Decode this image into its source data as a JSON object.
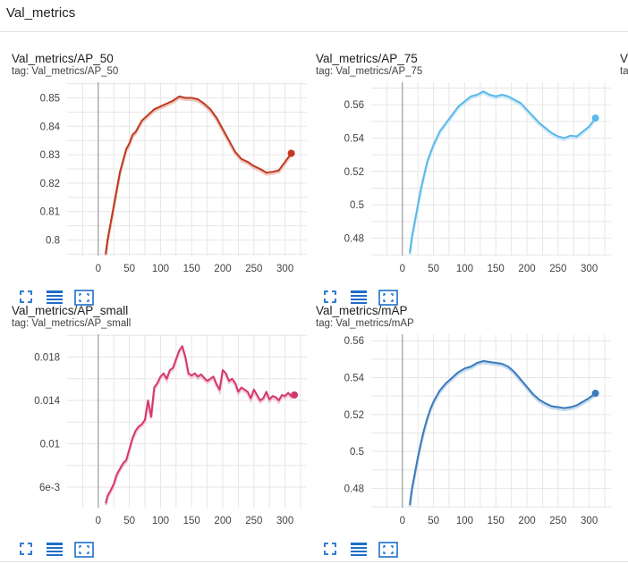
{
  "section": {
    "title": "Val_metrics"
  },
  "icons": {
    "fullscreen": "fullscreen-icon",
    "data_table": "table-icon",
    "fit_domain": "fit-domain-icon"
  },
  "cards": [
    {
      "title": "Val_metrics/AP_50",
      "tag": "tag: Val_metrics/AP_50",
      "color": "#c0391f",
      "chart_data": {
        "type": "line",
        "xlim": [
          -50,
          335
        ],
        "ylim": [
          0.7945,
          0.8555
        ],
        "xticks": [
          0,
          50,
          100,
          150,
          200,
          250,
          300
        ],
        "yticks": [
          0.8,
          0.81,
          0.82,
          0.83,
          0.84,
          0.85
        ],
        "ytick_labels": [
          "0.8",
          "0.81",
          "0.82",
          "0.83",
          "0.84",
          "0.85"
        ],
        "series": [
          {
            "x": [
              12,
              15,
              20,
              25,
              30,
              35,
              40,
              45,
              50,
              55,
              60,
              65,
              70,
              80,
              90,
              100,
              110,
              120,
              130,
              140,
              150,
              160,
              170,
              180,
              190,
              200,
              210,
              220,
              230,
              240,
              250,
              260,
              270,
              280,
              290,
              300,
              310
            ],
            "y": [
              0.795,
              0.8,
              0.806,
              0.812,
              0.818,
              0.824,
              0.828,
              0.832,
              0.834,
              0.837,
              0.838,
              0.84,
              0.842,
              0.844,
              0.846,
              0.847,
              0.848,
              0.849,
              0.8505,
              0.85,
              0.85,
              0.8495,
              0.848,
              0.846,
              0.843,
              0.839,
              0.835,
              0.831,
              0.8285,
              0.8275,
              0.826,
              0.825,
              0.8237,
              0.824,
              0.8245,
              0.8275,
              0.8305
            ]
          }
        ]
      }
    },
    {
      "title": "Val_metrics/AP_75",
      "tag": "tag: Val_metrics/AP_75",
      "color": "#5ab8e8",
      "chart_data": {
        "type": "line",
        "xlim": [
          -50,
          335
        ],
        "ylim": [
          0.4695,
          0.5735
        ],
        "xticks": [
          0,
          50,
          100,
          150,
          200,
          250,
          300
        ],
        "yticks": [
          0.48,
          0.5,
          0.52,
          0.54,
          0.56
        ],
        "ytick_labels": [
          "0.48",
          "0.5",
          "0.52",
          "0.54",
          "0.56"
        ],
        "series": [
          {
            "x": [
              12,
              15,
              20,
              25,
              30,
              35,
              40,
              45,
              50,
              55,
              60,
              70,
              80,
              90,
              100,
              110,
              120,
              130,
              140,
              150,
              160,
              170,
              180,
              190,
              200,
              210,
              220,
              230,
              240,
              250,
              260,
              270,
              280,
              290,
              300,
              310
            ],
            "y": [
              0.471,
              0.48,
              0.49,
              0.5,
              0.51,
              0.518,
              0.526,
              0.531,
              0.536,
              0.54,
              0.544,
              0.549,
              0.554,
              0.559,
              0.562,
              0.565,
              0.566,
              0.568,
              0.566,
              0.565,
              0.566,
              0.565,
              0.563,
              0.561,
              0.557,
              0.553,
              0.549,
              0.546,
              0.543,
              0.541,
              0.54,
              0.5415,
              0.541,
              0.544,
              0.547,
              0.552
            ]
          }
        ]
      }
    },
    {
      "title": "Val_metrics/AP_small",
      "tag": "tag: Val_metrics/AP_small",
      "color": "#d4376b",
      "chart_data": {
        "type": "line",
        "xlim": [
          -50,
          335
        ],
        "ylim": [
          0.0041,
          0.0201
        ],
        "xticks": [
          0,
          50,
          100,
          150,
          200,
          250,
          300
        ],
        "yticks": [
          0.006,
          0.01,
          0.014,
          0.018
        ],
        "ytick_labels": [
          "6e-3",
          "0.01",
          "0.014",
          "0.018"
        ],
        "series": [
          {
            "x": [
              12,
              15,
              20,
              25,
              30,
              35,
              40,
              45,
              50,
              55,
              60,
              65,
              70,
              75,
              80,
              85,
              90,
              95,
              100,
              105,
              110,
              115,
              120,
              125,
              130,
              135,
              140,
              145,
              150,
              155,
              160,
              165,
              170,
              175,
              180,
              185,
              190,
              195,
              200,
              205,
              210,
              215,
              220,
              225,
              230,
              235,
              240,
              245,
              250,
              255,
              260,
              265,
              270,
              275,
              280,
              285,
              290,
              295,
              300,
              305,
              310,
              315
            ],
            "y": [
              0.0045,
              0.0052,
              0.0057,
              0.0063,
              0.0072,
              0.0077,
              0.0082,
              0.0085,
              0.0095,
              0.0105,
              0.0112,
              0.0116,
              0.0118,
              0.0122,
              0.014,
              0.0125,
              0.0152,
              0.0156,
              0.0162,
              0.0165,
              0.016,
              0.0168,
              0.017,
              0.0178,
              0.0186,
              0.019,
              0.018,
              0.0165,
              0.0163,
              0.0165,
              0.0162,
              0.0164,
              0.0161,
              0.0158,
              0.016,
              0.0162,
              0.0155,
              0.015,
              0.0168,
              0.0165,
              0.0158,
              0.016,
              0.0156,
              0.0148,
              0.0152,
              0.015,
              0.0148,
              0.0142,
              0.015,
              0.0145,
              0.014,
              0.0142,
              0.0148,
              0.0141,
              0.0144,
              0.0143,
              0.014,
              0.0145,
              0.0144,
              0.0147,
              0.0144,
              0.0145
            ]
          }
        ]
      }
    },
    {
      "title": "Val_metrics/mAP",
      "tag": "tag: Val_metrics/mAP",
      "color": "#3a7bbd",
      "chart_data": {
        "type": "line",
        "xlim": [
          -50,
          335
        ],
        "ylim": [
          0.4695,
          0.5635
        ],
        "xticks": [
          0,
          50,
          100,
          150,
          200,
          250,
          300
        ],
        "yticks": [
          0.48,
          0.5,
          0.52,
          0.54,
          0.56
        ],
        "ytick_labels": [
          "0.48",
          "0.5",
          "0.52",
          "0.54",
          "0.56"
        ],
        "series": [
          {
            "x": [
              12,
              15,
              20,
              25,
              30,
              35,
              40,
              45,
              50,
              55,
              60,
              70,
              80,
              90,
              100,
              110,
              120,
              130,
              140,
              150,
              160,
              170,
              180,
              190,
              200,
              210,
              220,
              230,
              240,
              250,
              260,
              270,
              280,
              290,
              300,
              310
            ],
            "y": [
              0.471,
              0.479,
              0.488,
              0.497,
              0.505,
              0.512,
              0.518,
              0.523,
              0.527,
              0.53,
              0.533,
              0.537,
              0.54,
              0.543,
              0.545,
              0.546,
              0.548,
              0.549,
              0.5485,
              0.548,
              0.5475,
              0.546,
              0.543,
              0.539,
              0.535,
              0.531,
              0.528,
              0.526,
              0.5245,
              0.524,
              0.5235,
              0.524,
              0.525,
              0.527,
              0.529,
              0.5315
            ]
          }
        ]
      }
    }
  ],
  "partial_card": {
    "title": "V",
    "tag": "ta"
  }
}
